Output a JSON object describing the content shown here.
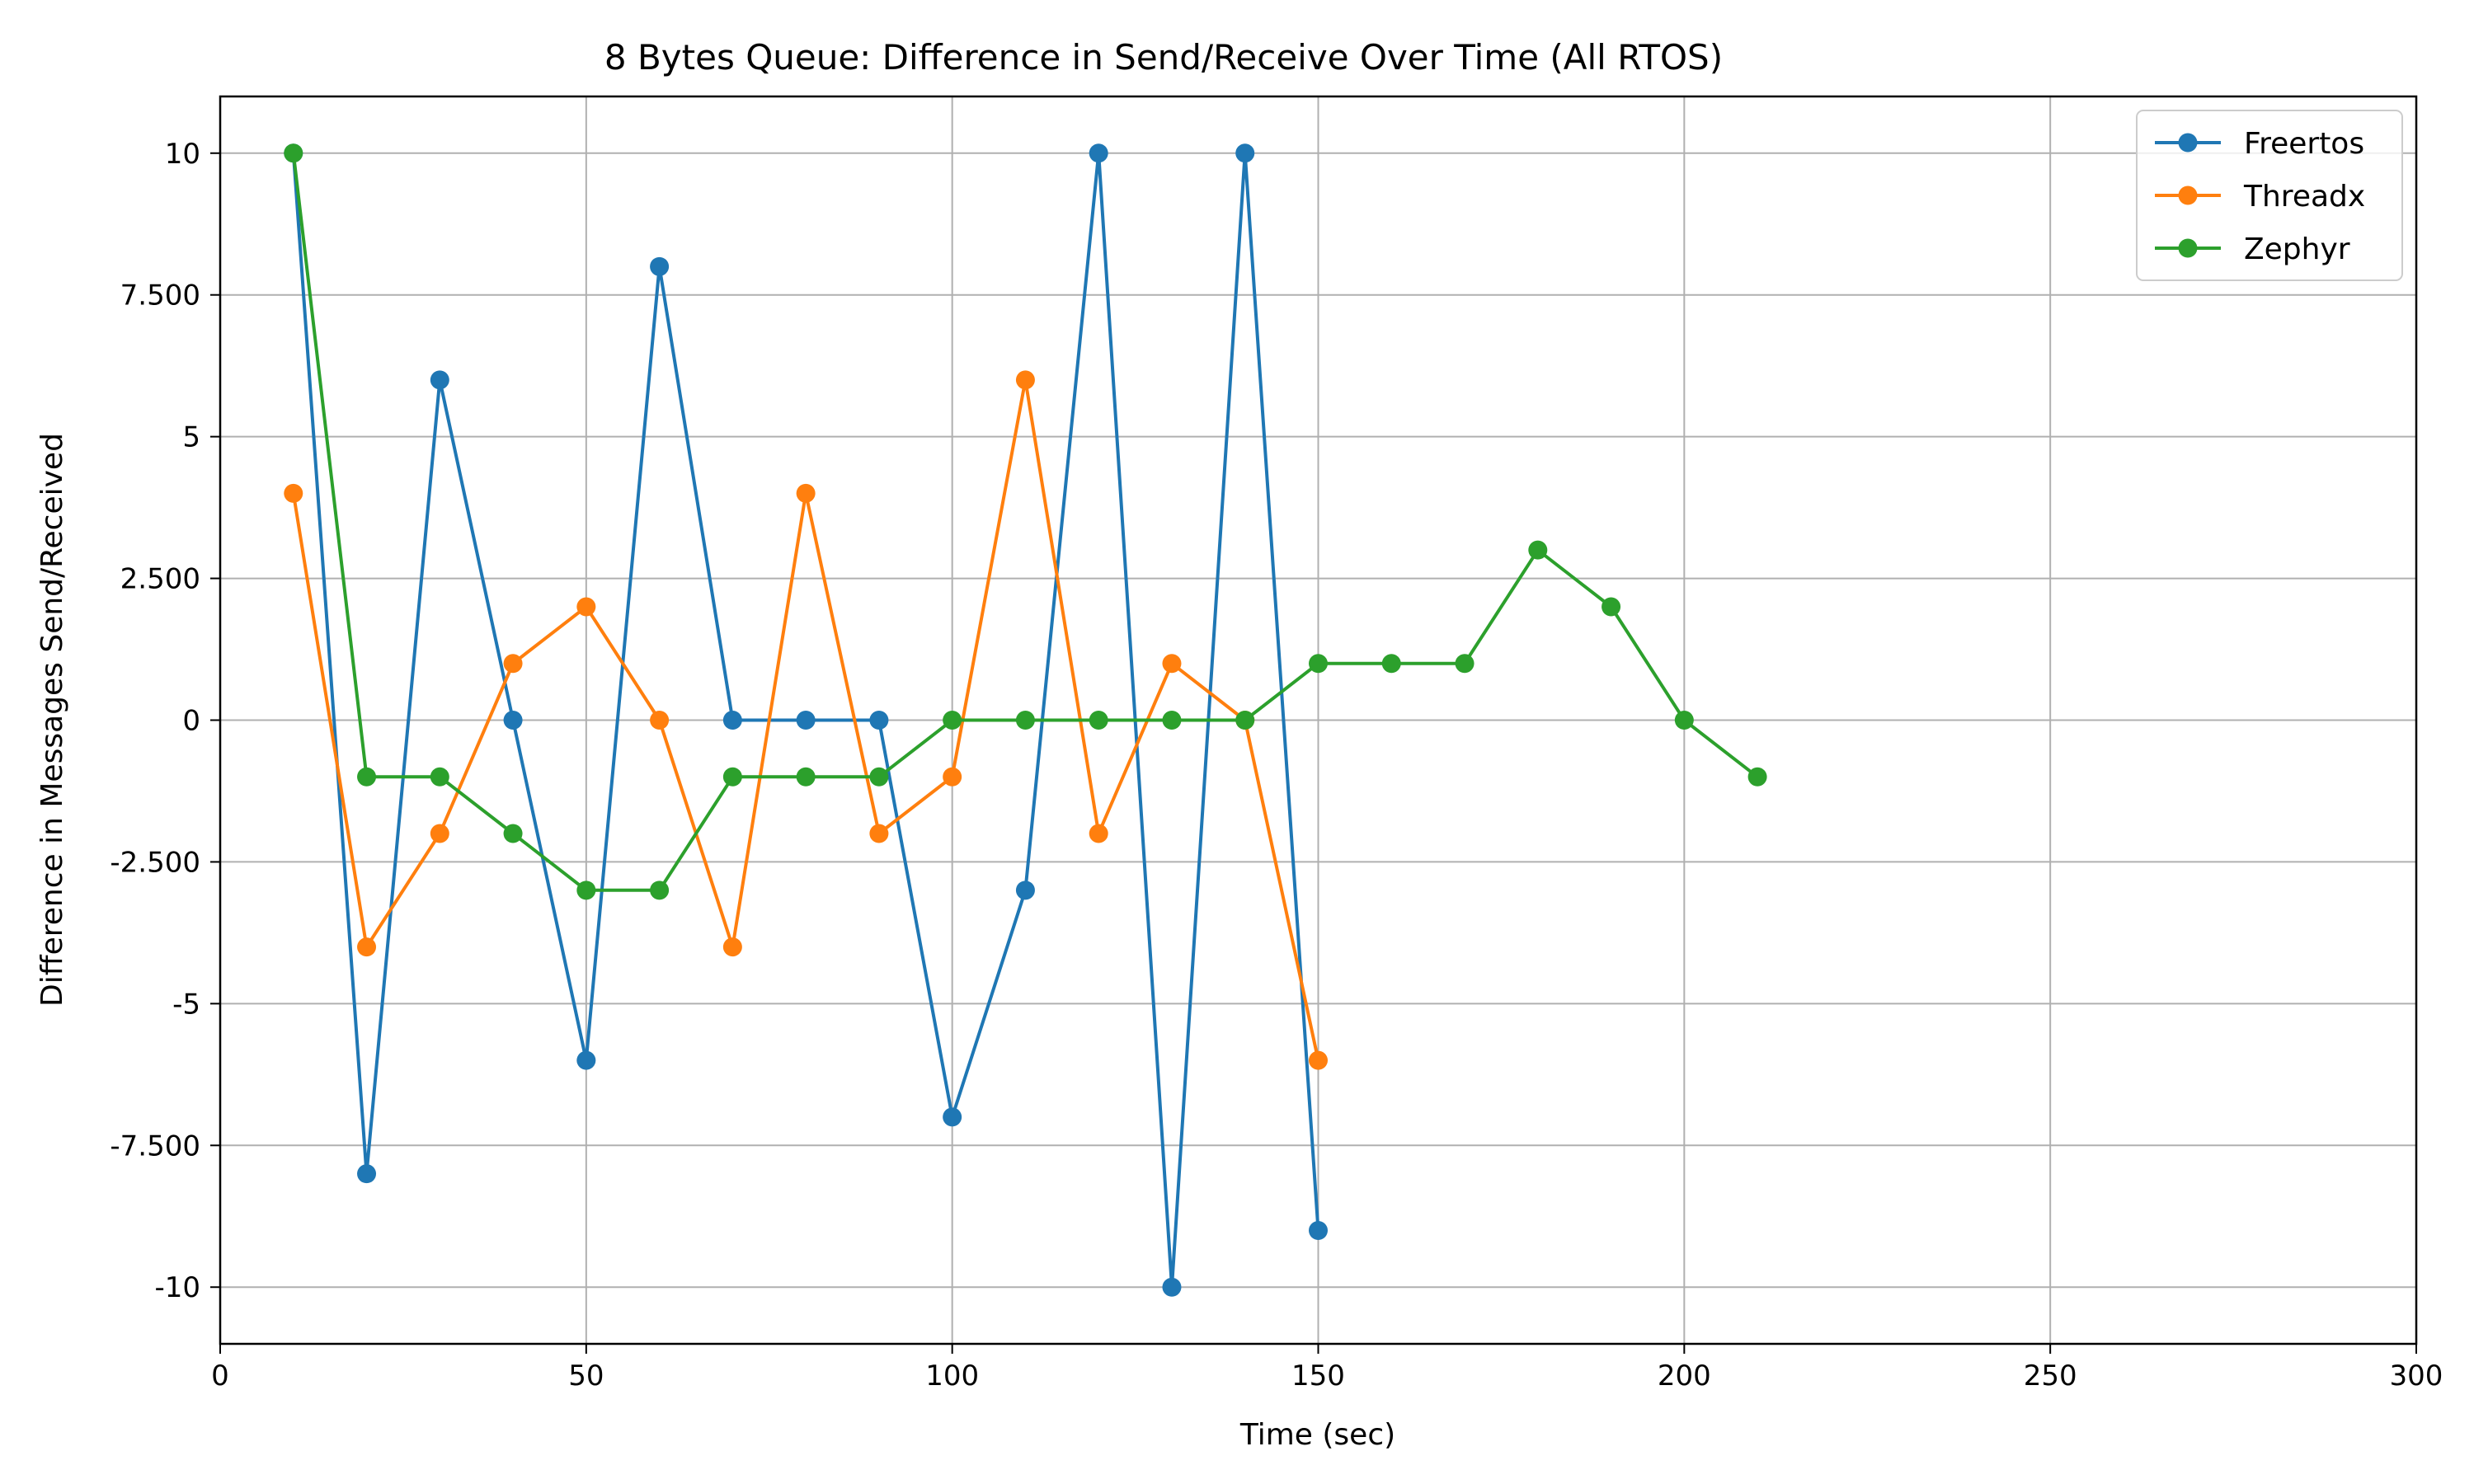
{
  "chart_data": {
    "type": "line",
    "title": "8 Bytes Queue: Difference in Send/Receive Over Time (All RTOS)",
    "xlabel": "Time (sec)",
    "ylabel": "Difference in Messages Send/Received",
    "xlim": [
      0,
      300
    ],
    "ylim": [
      -11,
      11
    ],
    "grid": true,
    "legend_position": "top-right",
    "x_ticks": [
      0,
      50,
      100,
      150,
      200,
      250,
      300
    ],
    "x_tick_labels": [
      "0",
      "50",
      "100",
      "150",
      "200",
      "250",
      "300"
    ],
    "y_ticks": [
      10,
      7.5,
      5,
      2.5,
      0,
      -2.5,
      -5,
      -7.5,
      -10
    ],
    "y_tick_labels": [
      "10",
      "7.500",
      "5",
      "2.500",
      "0",
      "-2.500",
      "-5",
      "-7.500",
      "-10"
    ],
    "series": [
      {
        "name": "Freertos",
        "color": "#1f77b4",
        "x": [
          10,
          20,
          30,
          40,
          50,
          60,
          70,
          80,
          90,
          100,
          110,
          120,
          130,
          140,
          150
        ],
        "y": [
          10,
          -8,
          6,
          0,
          -6,
          8,
          0,
          0,
          0,
          -7,
          -3,
          10,
          -10,
          10,
          -9
        ]
      },
      {
        "name": "Threadx",
        "color": "#ff7f0e",
        "x": [
          10,
          20,
          30,
          40,
          50,
          60,
          70,
          80,
          90,
          100,
          110,
          120,
          130,
          140,
          150
        ],
        "y": [
          4,
          -4,
          -2,
          1,
          2,
          0,
          -4,
          4,
          -2,
          -1,
          6,
          -2,
          1,
          0,
          -6
        ]
      },
      {
        "name": "Zephyr",
        "color": "#2ca02c",
        "x": [
          10,
          20,
          30,
          40,
          50,
          60,
          70,
          80,
          90,
          100,
          110,
          120,
          130,
          140,
          150,
          160,
          170,
          180,
          190,
          200,
          210
        ],
        "y": [
          10,
          -1,
          -1,
          -2,
          -3,
          -3,
          -1,
          -1,
          -1,
          0,
          0,
          0,
          0,
          0,
          1,
          1,
          1,
          3,
          2,
          0,
          -1
        ]
      }
    ]
  }
}
